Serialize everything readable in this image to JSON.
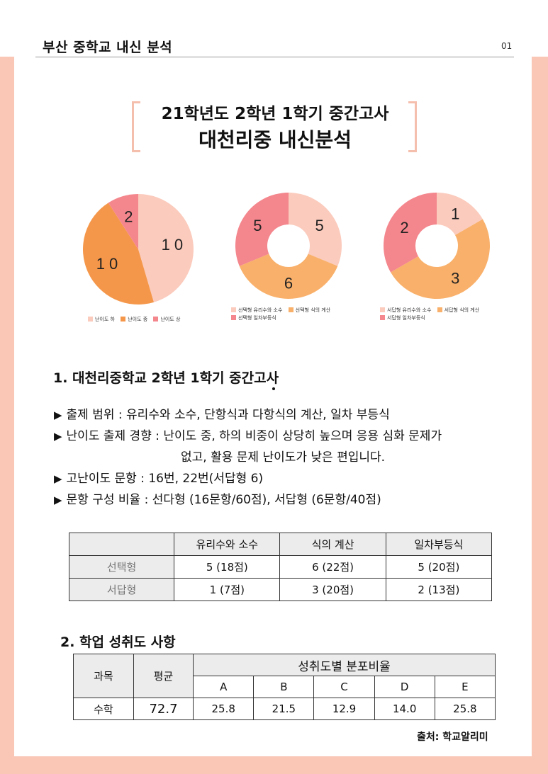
{
  "header": {
    "title": "부산 중학교 내신 분석",
    "page_number": "01"
  },
  "title": {
    "line1": "21학년도 2학년 1학기 중간고사",
    "line2": "대천리중 내신분석"
  },
  "chart_data": [
    {
      "type": "pie",
      "name": "difficulty",
      "categories": [
        "난이도 하",
        "난이도 중",
        "난이도 상"
      ],
      "values": [
        10,
        10,
        2
      ],
      "labels": [
        "1 0",
        "1 0",
        "2"
      ],
      "colors": [
        "#fbcbbd",
        "#f5974a",
        "#f4868d"
      ]
    },
    {
      "type": "donut",
      "name": "multiple-choice",
      "categories": [
        "선택형 유리수와 소수",
        "선택형 식의 계산",
        "선택형 일차부등식"
      ],
      "values": [
        5,
        6,
        5
      ],
      "labels": [
        "5",
        "6",
        "5"
      ],
      "colors": [
        "#fbcbbd",
        "#f9b06a",
        "#f4868d"
      ]
    },
    {
      "type": "donut",
      "name": "short-answer",
      "categories": [
        "서답형 유리수와 소수",
        "서답형 식의 계산",
        "서답형 일차부등식"
      ],
      "values": [
        1,
        3,
        2
      ],
      "labels": [
        "1",
        "3",
        "2"
      ],
      "colors": [
        "#fbcbbd",
        "#f9b06a",
        "#f4868d"
      ]
    }
  ],
  "section1": {
    "heading": "1. 대천리중학교 2학년 1학기 중간고사",
    "bullet_symbol": "▶",
    "bullets": [
      "출제 범위 : 유리수와 소수,  단항식과 다항식의 계산,  일차 부등식",
      "난이도 출제 경향 : 난이도 중, 하의 비중이  상당히 높으며  응용 심화 문제가",
      "고난이도 문항 : 16번, 22번(서답형 6)",
      "문항 구성 비율 : 선다형 (16문항/60점), 서답형 (6문항/40점)"
    ],
    "bullet2_continuation": "없고, 활용 문제 난이도가 낮은 편입니다."
  },
  "question_table": {
    "headers": [
      "",
      "유리수와 소수",
      "식의 계산",
      "일차부등식"
    ],
    "rows": [
      [
        "선택형",
        "5 (18점)",
        "6 (22점)",
        "5 (20점)"
      ],
      [
        "서답형",
        "1 (7점)",
        "3 (20점)",
        "2 (13점)"
      ]
    ]
  },
  "section2": {
    "heading": "2.  학업 성취도 사항",
    "table": {
      "col_subject": "과목",
      "col_average": "평균",
      "col_distribution": "성취도별 분포비율",
      "grades": [
        "A",
        "B",
        "C",
        "D",
        "E"
      ],
      "row": {
        "subject": "수학",
        "average": "72.7",
        "values": [
          "25.8",
          "21.5",
          "12.9",
          "14.0",
          "25.8"
        ]
      }
    }
  },
  "source": "출처: 학교알리미"
}
